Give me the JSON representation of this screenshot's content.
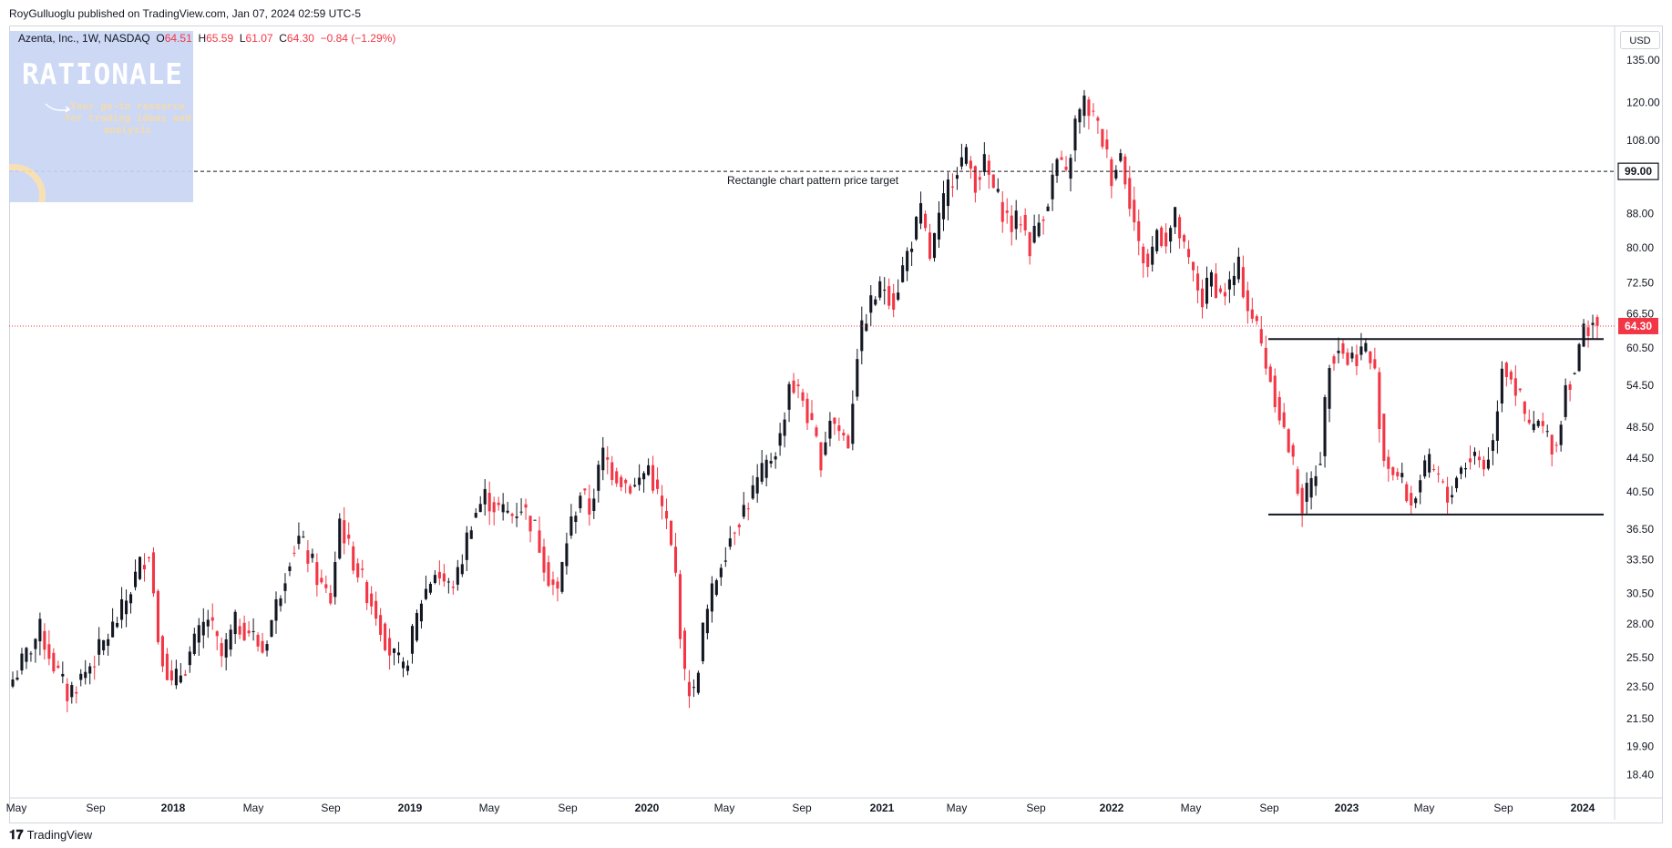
{
  "header": {
    "publisher": "RoyGulluoglu published on TradingView.com, Jan 07, 2024 02:59 UTC-5"
  },
  "legend": {
    "symbol": "Azenta, Inc., 1W, NASDAQ",
    "open_label": "O",
    "open": "64.51",
    "high_label": "H",
    "high": "65.59",
    "low_label": "L",
    "low": "61.07",
    "close_label": "C",
    "close": "64.30",
    "change": "−0.84 (−1.29%)"
  },
  "logo": {
    "title": "RATIONALE",
    "tagline": "Your go-to resource for trading ideas and analysis"
  },
  "currency": "USD",
  "footer": {
    "brand": "TradingView"
  },
  "colors": {
    "up": "#131722",
    "down": "#f23645",
    "accent": "#f23645",
    "grid": "#ffffff"
  },
  "chart_data": {
    "type": "candlestick",
    "scale": "log",
    "ylim": [
      17.5,
      145
    ],
    "y_ticks": [
      "135.00",
      "120.00",
      "108.00",
      "99.00",
      "88.00",
      "80.00",
      "72.50",
      "66.50",
      "60.50",
      "54.50",
      "48.50",
      "44.50",
      "40.50",
      "36.50",
      "33.50",
      "30.50",
      "28.00",
      "25.50",
      "23.50",
      "21.50",
      "19.90",
      "18.40"
    ],
    "x_ticks": [
      "May",
      "Sep",
      "2018",
      "May",
      "Sep",
      "2019",
      "May",
      "Sep",
      "2020",
      "May",
      "Sep",
      "2021",
      "May",
      "Sep",
      "2022",
      "May",
      "Sep",
      "2023",
      "May",
      "Sep",
      "2024"
    ],
    "last_price": "64.30",
    "target_price": "99.00",
    "annotation": "Rectangle chart pattern price target",
    "levels": {
      "target": 99.0,
      "resistance": 62.0,
      "support": 38.0,
      "last": 64.3
    },
    "anchors": [
      [
        0,
        24.0
      ],
      [
        6,
        27.5
      ],
      [
        9,
        25.0
      ],
      [
        12,
        23.0
      ],
      [
        16,
        24.5
      ],
      [
        20,
        26.5
      ],
      [
        24,
        29.0
      ],
      [
        28,
        33.0
      ],
      [
        30,
        34.5
      ],
      [
        32,
        27.0
      ],
      [
        35,
        23.5
      ],
      [
        38,
        25.0
      ],
      [
        40,
        26.5
      ],
      [
        43,
        28.5
      ],
      [
        46,
        25.5
      ],
      [
        49,
        28.0
      ],
      [
        52,
        27.5
      ],
      [
        55,
        26.0
      ],
      [
        58,
        29.5
      ],
      [
        61,
        34.0
      ],
      [
        63,
        35.5
      ],
      [
        66,
        33.0
      ],
      [
        68,
        31.0
      ],
      [
        70,
        30.0
      ],
      [
        72,
        37.5
      ],
      [
        74,
        34.5
      ],
      [
        77,
        31.5
      ],
      [
        80,
        29.0
      ],
      [
        83,
        26.0
      ],
      [
        86,
        24.5
      ],
      [
        88,
        27.0
      ],
      [
        90,
        30.0
      ],
      [
        93,
        32.5
      ],
      [
        96,
        31.0
      ],
      [
        98,
        32.0
      ],
      [
        101,
        37.5
      ],
      [
        104,
        40.0
      ],
      [
        107,
        38.5
      ],
      [
        110,
        38.0
      ],
      [
        112,
        39.0
      ],
      [
        115,
        36.5
      ],
      [
        118,
        32.0
      ],
      [
        120,
        30.5
      ],
      [
        122,
        35.5
      ],
      [
        125,
        40.5
      ],
      [
        127,
        38.5
      ],
      [
        130,
        45.0
      ],
      [
        132,
        43.0
      ],
      [
        135,
        41.5
      ],
      [
        137,
        41.0
      ],
      [
        140,
        43.5
      ],
      [
        142,
        40.0
      ],
      [
        144,
        37.0
      ],
      [
        146,
        32.0
      ],
      [
        148,
        24.0
      ],
      [
        150,
        23.0
      ],
      [
        152,
        27.5
      ],
      [
        154,
        30.5
      ],
      [
        156,
        33.5
      ],
      [
        159,
        37.0
      ],
      [
        162,
        39.5
      ],
      [
        164,
        41.5
      ],
      [
        166,
        43.5
      ],
      [
        169,
        47.0
      ],
      [
        171,
        55.0
      ],
      [
        174,
        52.5
      ],
      [
        176,
        48.0
      ],
      [
        178,
        44.5
      ],
      [
        180,
        50.0
      ],
      [
        182,
        48.0
      ],
      [
        184,
        46.5
      ],
      [
        186,
        60.0
      ],
      [
        188,
        66.5
      ],
      [
        190,
        70.0
      ],
      [
        192,
        72.0
      ],
      [
        194,
        69.0
      ],
      [
        196,
        75.5
      ],
      [
        198,
        82.0
      ],
      [
        200,
        88.0
      ],
      [
        202,
        78.0
      ],
      [
        204,
        86.0
      ],
      [
        206,
        95.0
      ],
      [
        208,
        101.0
      ],
      [
        210,
        103.0
      ],
      [
        212,
        96.5
      ],
      [
        214,
        101.0
      ],
      [
        216,
        94.0
      ],
      [
        218,
        89.0
      ],
      [
        220,
        85.0
      ],
      [
        222,
        87.0
      ],
      [
        224,
        80.5
      ],
      [
        226,
        86.0
      ],
      [
        228,
        92.0
      ],
      [
        230,
        102.0
      ],
      [
        232,
        97.0
      ],
      [
        234,
        113.0
      ],
      [
        236,
        120.0
      ],
      [
        238,
        115.0
      ],
      [
        240,
        108.0
      ],
      [
        242,
        98.0
      ],
      [
        244,
        104.0
      ],
      [
        246,
        92.0
      ],
      [
        248,
        80.0
      ],
      [
        250,
        76.0
      ],
      [
        252,
        84.0
      ],
      [
        254,
        82.0
      ],
      [
        256,
        87.0
      ],
      [
        258,
        79.0
      ],
      [
        260,
        74.0
      ],
      [
        262,
        69.0
      ],
      [
        264,
        74.0
      ],
      [
        266,
        70.0
      ],
      [
        268,
        72.0
      ],
      [
        270,
        75.5
      ],
      [
        272,
        68.0
      ],
      [
        274,
        64.0
      ],
      [
        276,
        58.0
      ],
      [
        278,
        53.0
      ],
      [
        280,
        48.0
      ],
      [
        282,
        43.5
      ],
      [
        284,
        39.0
      ],
      [
        286,
        41.5
      ],
      [
        288,
        45.0
      ],
      [
        290,
        59.0
      ],
      [
        292,
        61.0
      ],
      [
        294,
        58.5
      ],
      [
        296,
        59.5
      ],
      [
        298,
        60.5
      ],
      [
        300,
        56.0
      ],
      [
        302,
        44.5
      ],
      [
        304,
        43.0
      ],
      [
        306,
        41.5
      ],
      [
        308,
        39.0
      ],
      [
        310,
        42.0
      ],
      [
        312,
        43.5
      ],
      [
        314,
        42.0
      ],
      [
        316,
        39.5
      ],
      [
        318,
        42.5
      ],
      [
        320,
        44.0
      ],
      [
        322,
        45.0
      ],
      [
        324,
        43.5
      ],
      [
        326,
        46.5
      ],
      [
        328,
        58.0
      ],
      [
        330,
        56.0
      ],
      [
        332,
        52.0
      ],
      [
        334,
        48.0
      ],
      [
        336,
        49.0
      ],
      [
        338,
        47.0
      ],
      [
        340,
        46.0
      ],
      [
        342,
        54.5
      ],
      [
        344,
        57.0
      ],
      [
        346,
        63.5
      ],
      [
        348,
        65.5
      ],
      [
        349,
        64.3
      ]
    ]
  }
}
